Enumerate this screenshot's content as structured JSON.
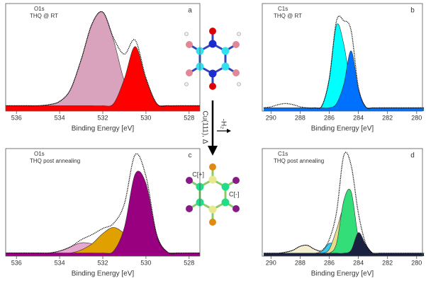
{
  "chart_data": [
    {
      "type": "area",
      "panel": "a",
      "annotations": [
        "O1s",
        "THQ @ RT"
      ],
      "xlabel": "Binding Energy [eV]",
      "x": [
        536.5,
        536,
        535.5,
        535,
        534.5,
        534,
        533.5,
        533,
        532.5,
        532,
        531.5,
        531,
        530.5,
        530,
        529.5,
        529,
        528.5,
        528,
        527.5
      ],
      "xlim": [
        536.5,
        527.5
      ],
      "xticks": [
        536,
        534,
        532,
        530,
        528
      ],
      "ylim": [
        0,
        100
      ],
      "series": [
        {
          "color": "#d9a3be",
          "values": [
            5,
            5,
            5,
            5,
            6,
            9,
            20,
            48,
            81,
            92,
            66,
            28,
            11,
            6,
            5,
            5,
            5,
            5,
            5
          ]
        },
        {
          "color": "#ff0000",
          "values": [
            5,
            5,
            5,
            5,
            5,
            5,
            5,
            5,
            5,
            5,
            7,
            30,
            60,
            30,
            7,
            5,
            5,
            5,
            5
          ]
        }
      ],
      "measured": {
        "color": "#000000",
        "values": [
          5,
          5,
          5,
          5,
          6,
          9,
          20,
          48,
          81,
          92,
          68,
          53,
          66,
          31,
          7,
          5,
          5,
          5,
          5
        ]
      }
    },
    {
      "type": "area",
      "panel": "b",
      "annotations": [
        "C1s",
        "THQ @ RT"
      ],
      "xlabel": "Binding Energy [eV]",
      "x": [
        290.5,
        290,
        289.5,
        289,
        288.5,
        288,
        287.5,
        287,
        286.5,
        286,
        285.5,
        285,
        284.5,
        284,
        283.5,
        283,
        282.5,
        282,
        281.5,
        281,
        280.5,
        280,
        279.5
      ],
      "xlim": [
        290.6,
        279.6
      ],
      "xticks": [
        290,
        288,
        286,
        284,
        282,
        280
      ],
      "ylim": [
        0,
        100
      ],
      "series": [
        {
          "color": "#00ffff",
          "values": [
            3,
            3,
            3,
            3,
            3,
            3,
            3,
            3,
            5,
            30,
            80,
            62,
            22,
            4,
            3,
            3,
            3,
            3,
            3,
            3,
            3,
            3,
            3
          ]
        },
        {
          "color": "#0070ff",
          "values": [
            3,
            3,
            3,
            3,
            3,
            3,
            3,
            3,
            3,
            3,
            7,
            25,
            56,
            21,
            4,
            3,
            3,
            3,
            3,
            3,
            3,
            3,
            3
          ]
        }
      ],
      "measured": {
        "color": "#000000",
        "values": [
          3,
          4,
          6,
          7,
          6,
          4,
          3,
          3,
          5,
          30,
          84,
          84,
          75,
          22,
          4,
          3,
          3,
          3,
          3,
          3,
          3,
          3,
          3
        ]
      }
    },
    {
      "type": "area",
      "panel": "c",
      "annotations": [
        "O1s",
        "THQ post annealing"
      ],
      "xlabel": "Binding Energy [eV]",
      "x": [
        536.5,
        536,
        535.5,
        535,
        534.5,
        534,
        533.5,
        533,
        532.5,
        532,
        531.5,
        531,
        530.5,
        530,
        529.5,
        529,
        528.5,
        528,
        527.5
      ],
      "xlim": [
        536.5,
        527.5
      ],
      "xticks": [
        536,
        534,
        532,
        530,
        528
      ],
      "ylim": [
        0,
        105
      ],
      "series": [
        {
          "color": "#e6a8cf",
          "values": [
            3,
            3,
            3,
            3,
            3,
            5,
            9,
            13,
            12,
            8,
            5,
            3,
            3,
            3,
            3,
            3,
            3,
            3,
            3
          ]
        },
        {
          "color": "#e0a000",
          "values": [
            3,
            3,
            3,
            3,
            3,
            3,
            3,
            6,
            12,
            22,
            28,
            22,
            12,
            6,
            3,
            3,
            3,
            3,
            3
          ]
        },
        {
          "color": "#ff0000",
          "values": [
            3,
            3,
            3,
            3,
            3,
            3,
            3,
            3,
            3,
            3,
            3,
            7,
            13,
            7,
            3,
            3,
            3,
            3,
            3
          ]
        },
        {
          "color": "#990080",
          "values": [
            3,
            3,
            3,
            3,
            3,
            3,
            3,
            3,
            3,
            3,
            5,
            28,
            80,
            71,
            21,
            4,
            3,
            3,
            3
          ]
        }
      ],
      "measured": {
        "color": "#000000",
        "values": [
          3,
          3,
          3,
          3,
          3,
          5,
          9,
          16,
          21,
          27,
          32,
          51,
          99,
          78,
          21,
          4,
          3,
          3,
          3
        ]
      }
    },
    {
      "type": "area",
      "panel": "d",
      "annotations": [
        "C1s",
        "THQ post annealing"
      ],
      "xlabel": "Binding Energy [eV]",
      "x": [
        290.5,
        290,
        289.5,
        289,
        288.5,
        288,
        287.5,
        287,
        286.5,
        286,
        285.5,
        285,
        284.5,
        284,
        283.5,
        283,
        282.5,
        282,
        281.5,
        281,
        280.5,
        280,
        279.5
      ],
      "xlim": [
        290.6,
        279.6
      ],
      "xticks": [
        290,
        288,
        286,
        284,
        282,
        280
      ],
      "ylim": [
        0,
        110
      ],
      "series": [
        {
          "color": "#f3efcf",
          "values": [
            3,
            3,
            3,
            4,
            6,
            10,
            11,
            7,
            4,
            3,
            3,
            3,
            3,
            3,
            3,
            3,
            3,
            3,
            3,
            3,
            3,
            3,
            3
          ]
        },
        {
          "color": "#33ccee",
          "values": [
            3,
            3,
            3,
            3,
            3,
            3,
            3,
            3,
            5,
            13,
            11,
            4,
            3,
            3,
            3,
            3,
            3,
            3,
            3,
            3,
            3,
            3,
            3
          ]
        },
        {
          "color": "#e5dc8c",
          "values": [
            3,
            3,
            3,
            3,
            3,
            3,
            3,
            3,
            3,
            7,
            27,
            48,
            27,
            7,
            3,
            3,
            3,
            3,
            3,
            3,
            3,
            3,
            3
          ]
        },
        {
          "color": "#33dd77",
          "values": [
            3,
            3,
            3,
            3,
            3,
            3,
            3,
            3,
            3,
            3,
            13,
            57,
            66,
            19,
            4,
            3,
            3,
            3,
            3,
            3,
            3,
            3,
            3
          ]
        },
        {
          "color": "#1a2040",
          "values": [
            3,
            3,
            3,
            3,
            3,
            3,
            3,
            3,
            3,
            3,
            3,
            3,
            6,
            24,
            12,
            3,
            3,
            3,
            3,
            3,
            3,
            3,
            3
          ]
        }
      ],
      "measured": {
        "color": "#000000",
        "values": [
          3,
          3,
          3,
          4,
          6,
          10,
          11,
          7,
          6,
          17,
          45,
          103,
          93,
          44,
          13,
          3,
          3,
          3,
          3,
          3,
          3,
          3,
          3
        ]
      }
    }
  ],
  "scheme": {
    "arrow_label": "Cu(111), Δ",
    "side_label": "-H₂",
    "atom_labels": [
      "C[+]",
      "C[-]"
    ]
  }
}
